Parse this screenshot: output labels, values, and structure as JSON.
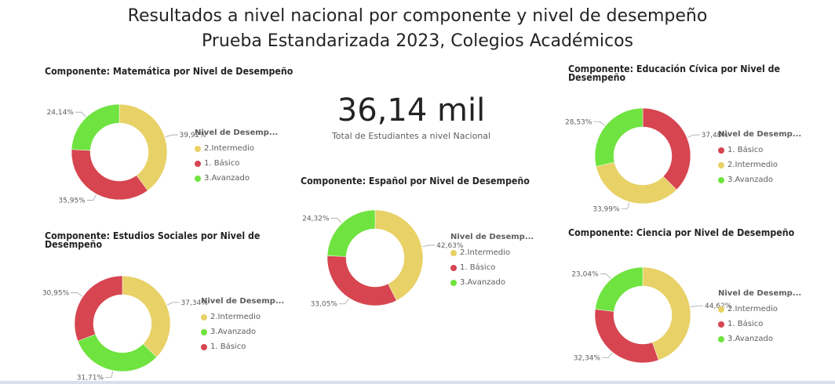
{
  "header": {
    "title_line1": "Resultados a nivel nacional por componente y nivel de desempeño",
    "title_line2": "Prueba Estandarizada 2023, Colegios Académicos"
  },
  "kpi": {
    "value": "36,14 mil",
    "label": "Total de Estudiantes a nivel Nacional"
  },
  "colors": {
    "intermedio": "#E8D166",
    "basico": "#D64550",
    "avanzado": "#6FE33F"
  },
  "chart_data": [
    {
      "id": "matematica",
      "type": "pie",
      "title_lines": [
        "Componente: Matemática por Nivel de Desempeño"
      ],
      "legend_title": "Nivel de Desemp...",
      "legend": [
        "2.Intermedio",
        "1. Básico",
        "3.Avanzado"
      ],
      "slices": [
        {
          "name": "2.Intermedio",
          "value": 39.92,
          "label": "39,92%",
          "color": "#E8D166"
        },
        {
          "name": "1. Básico",
          "value": 35.95,
          "label": "35,95%",
          "color": "#D64550"
        },
        {
          "name": "3.Avanzado",
          "value": 24.14,
          "label": "24,14%",
          "color": "#6FE33F"
        }
      ]
    },
    {
      "id": "sociales",
      "type": "pie",
      "title_lines": [
        "Componente: Estudios Sociales por Nivel de",
        "Desempeño"
      ],
      "legend_title": "Nivel de Desemp...",
      "legend": [
        "2.Intermedio",
        "3.Avanzado",
        "1. Básico"
      ],
      "slices": [
        {
          "name": "2.Intermedio",
          "value": 37.34,
          "label": "37,34%",
          "color": "#E8D166"
        },
        {
          "name": "3.Avanzado",
          "value": 31.71,
          "label": "31,71%",
          "color": "#6FE33F"
        },
        {
          "name": "1. Básico",
          "value": 30.95,
          "label": "30,95%",
          "color": "#D64550"
        }
      ]
    },
    {
      "id": "espanol",
      "type": "pie",
      "title_lines": [
        "Componente: Español por Nivel de Desempeño"
      ],
      "legend_title": "Nivel de Desemp...",
      "legend": [
        "2.Intermedio",
        "1. Básico",
        "3.Avanzado"
      ],
      "slices": [
        {
          "name": "2.Intermedio",
          "value": 42.63,
          "label": "42,63%",
          "color": "#E8D166"
        },
        {
          "name": "1. Básico",
          "value": 33.05,
          "label": "33,05%",
          "color": "#D64550"
        },
        {
          "name": "3.Avanzado",
          "value": 24.32,
          "label": "24,32%",
          "color": "#6FE33F"
        }
      ]
    },
    {
      "id": "civica",
      "type": "pie",
      "title_lines": [
        "Componente: Educación Cívica por Nivel de",
        "Desempeño"
      ],
      "legend_title": "Nivel de Desemp...",
      "legend": [
        "1. Básico",
        "2.Intermedio",
        "3.Avanzado"
      ],
      "slices": [
        {
          "name": "1. Básico",
          "value": 37.48,
          "label": "37,48%",
          "color": "#D64550"
        },
        {
          "name": "2.Intermedio",
          "value": 33.99,
          "label": "33,99%",
          "color": "#E8D166"
        },
        {
          "name": "3.Avanzado",
          "value": 28.53,
          "label": "28,53%",
          "color": "#6FE33F"
        }
      ]
    },
    {
      "id": "ciencia",
      "type": "pie",
      "title_lines": [
        "Componente: Ciencia por Nivel de Desempeño"
      ],
      "legend_title": "Nivel de Desemp...",
      "legend": [
        "2.Intermedio",
        "1. Básico",
        "3.Avanzado"
      ],
      "slices": [
        {
          "name": "2.Intermedio",
          "value": 44.62,
          "label": "44,62%",
          "color": "#E8D166"
        },
        {
          "name": "1. Básico",
          "value": 32.34,
          "label": "32,34%",
          "color": "#D64550"
        },
        {
          "name": "3.Avanzado",
          "value": 23.04,
          "label": "23,04%",
          "color": "#6FE33F"
        }
      ]
    }
  ]
}
